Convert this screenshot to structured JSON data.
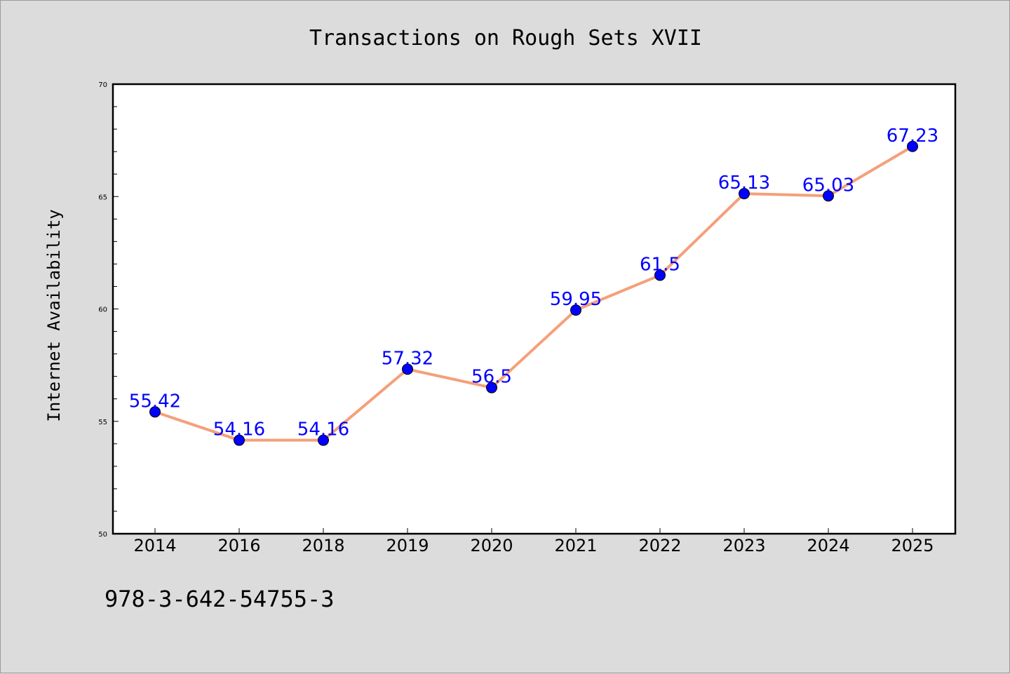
{
  "chart_data": {
    "type": "line",
    "title": "Transactions on Rough Sets XVII",
    "xlabel": "",
    "ylabel": "Internet Availability",
    "categories": [
      "2014",
      "2016",
      "2018",
      "2019",
      "2020",
      "2021",
      "2022",
      "2023",
      "2024",
      "2025"
    ],
    "series": [
      {
        "values": [
          55.42,
          54.16,
          54.16,
          57.32,
          56.5,
          59.95,
          61.5,
          65.13,
          65.03,
          67.23
        ],
        "labels": [
          "55.42",
          "54.16",
          "54.16",
          "57.32",
          "56.5",
          "59.95",
          "61.5",
          "65.13",
          "65.03",
          "67.23"
        ],
        "line_color": "#f4a07a",
        "marker_color": "#0000ff"
      }
    ],
    "ylim": [
      50,
      70
    ],
    "yticks": [
      "50",
      "55",
      "60",
      "65",
      "70"
    ],
    "grid": false,
    "legend": "none",
    "label_color": "#0000ff"
  },
  "footer_text": "978-3-642-54755-3"
}
